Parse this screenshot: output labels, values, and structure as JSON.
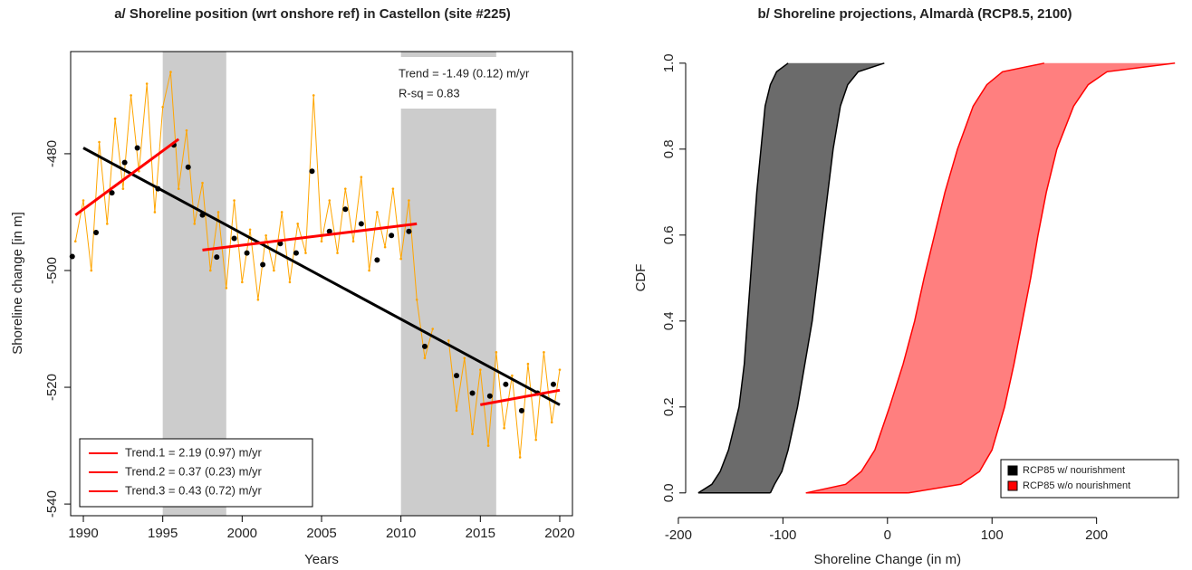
{
  "chart_data": [
    {
      "type": "line",
      "title": "a/ Shoreline position (wrt onshore ref) in Castellon (site #225)",
      "x_label": "Years",
      "y_label": "Shoreline change [in m]",
      "xlim": [
        1989.2,
        2020.8
      ],
      "ylim": [
        -542,
        -462.5
      ],
      "xticks": [
        1990,
        1995,
        2000,
        2005,
        2010,
        2015,
        2020
      ],
      "yticks": [
        -480,
        -500,
        -520,
        -540
      ],
      "shaded_periods": [
        [
          1995,
          1999
        ],
        [
          2010,
          2016
        ]
      ],
      "shade_color": "#cccccc",
      "annotations": [
        "Trend = -1.49 (0.12) m/yr",
        "R-sq = 0.83"
      ],
      "legend_position": "bottom-left",
      "series": [
        {
          "style": "line-points",
          "color": "#ffa500",
          "x": [
            1989.5,
            1990,
            1990.5,
            1991,
            1991.5,
            1992,
            1992.5,
            1993,
            1993.5,
            1994,
            1994.5,
            1995,
            1995.5,
            1996,
            1996.5,
            1997,
            1997.5,
            1998,
            1998.5,
            1999,
            1999.5,
            2000,
            2000.5,
            2001,
            2001.5,
            2002,
            2002.5,
            2003,
            2003.5,
            2004,
            2004.5,
            2005,
            2005.5,
            2006,
            2006.5,
            2007,
            2007.5,
            2008,
            2008.5,
            2009,
            2009.5,
            2010,
            2010.5,
            2011,
            2011.5,
            2012,
            2012.5,
            2013,
            2013.5,
            2014,
            2014.5,
            2015,
            2015.5,
            2016,
            2016.5,
            2017,
            2017.5,
            2018,
            2018.5,
            2019,
            2019.5,
            2020
          ],
          "values": [
            -495,
            -488,
            -500,
            -478,
            -492,
            -474,
            -486,
            -470,
            -483,
            -468,
            -490,
            -472,
            -466,
            -486,
            -476,
            -492,
            -485,
            -500,
            -490,
            -503,
            -488,
            -502,
            -493,
            -505,
            -494,
            -500,
            -490,
            -502,
            -492,
            -497,
            -470,
            -495,
            -488,
            -497,
            -486,
            -495,
            -484,
            -500,
            -490,
            -496,
            -486,
            -498,
            -488,
            -505,
            -515,
            -510,
            null,
            -512,
            -524,
            -515,
            -528,
            -517,
            -530,
            -514,
            -527,
            -518,
            -532,
            -516,
            -529,
            -514,
            -526,
            -517
          ]
        },
        {
          "style": "points",
          "color": "#000000",
          "x": [
            1989.3,
            1990.8,
            1991.8,
            1992.6,
            1993.4,
            1994.7,
            1995.7,
            1996.6,
            1997.5,
            1998.4,
            1999.5,
            2000.3,
            2001.3,
            2002.4,
            2003.4,
            2004.4,
            2005.5,
            2006.5,
            2007.5,
            2008.5,
            2009.4,
            2010.5,
            2011.5,
            2013.5,
            2014.5,
            2015.6,
            2016.6,
            2017.6,
            2018.6,
            2019.6
          ],
          "values": [
            -497.6,
            -493.5,
            -486.7,
            -481.5,
            -479,
            -486,
            -478.5,
            -482.3,
            -490.5,
            -497.7,
            -494.5,
            -497,
            -499,
            -495.4,
            -497,
            -483,
            -493.3,
            -489.5,
            -492,
            -498.2,
            -494,
            -493.3,
            -513,
            -518,
            -521,
            -521.5,
            -519.5,
            -524,
            -521,
            -519.5
          ]
        },
        {
          "style": "line",
          "color": "#000000",
          "x": [
            1990,
            2020
          ],
          "values": [
            -479,
            -523
          ]
        },
        {
          "style": "line",
          "name": "Trend.1 = 2.19 (0.97) m/yr",
          "color": "#ff0000",
          "x": [
            1989.5,
            1996
          ],
          "values": [
            -490.5,
            -477.5
          ]
        },
        {
          "style": "line",
          "name": "Trend.2 = 0.37 (0.23) m/yr",
          "color": "#ff0000",
          "x": [
            1997.5,
            2011
          ],
          "values": [
            -496.5,
            -492
          ]
        },
        {
          "style": "line",
          "name": "Trend.3 = 0.43 (0.72) m/yr",
          "color": "#ff0000",
          "x": [
            2015,
            2020
          ],
          "values": [
            -523,
            -520.5
          ]
        }
      ]
    },
    {
      "type": "area",
      "title": "b/ Shoreline projections, Almardà (RCP8.5, 2100)",
      "x_label": "Shoreline Change (in m)",
      "y_label": "CDF",
      "xlim": [
        -219,
        280
      ],
      "ylim": [
        -0.032,
        1.027
      ],
      "xticks": [
        -200,
        -100,
        0,
        100,
        200
      ],
      "yticks": [
        {
          "value": 0,
          "label": "0.0"
        },
        0.2,
        0.4,
        0.6,
        0.8,
        {
          "value": 1,
          "label": "1.0"
        }
      ],
      "legend_position": "bottom-right",
      "y": [
        0,
        0.02,
        0.05,
        0.1,
        0.2,
        0.3,
        0.4,
        0.5,
        0.6,
        0.7,
        0.8,
        0.9,
        0.95,
        0.98,
        1
      ],
      "series": [
        {
          "name": "RCP85 w/ nourishment",
          "color": "#000000",
          "fill": "#6b6b6b",
          "x_lower": [
            -181,
            -168,
            -160,
            -152,
            -142,
            -137,
            -134,
            -131,
            -128,
            -125,
            -121,
            -117,
            -112,
            -106,
            -95
          ],
          "x_upper": [
            -112,
            -108,
            -101,
            -95,
            -86,
            -79,
            -72,
            -67,
            -62,
            -57,
            -52,
            -45,
            -38,
            -28,
            -3
          ]
        },
        {
          "name": "RCP85 w/o nourishment",
          "color": "#ff0000",
          "fill": "#ff7f7f",
          "x_lower": [
            -78,
            -40,
            -25,
            -12,
            2,
            15,
            26,
            35,
            45,
            55,
            67,
            82,
            95,
            110,
            150
          ],
          "x_upper": [
            20,
            70,
            88,
            100,
            112,
            121,
            129,
            137,
            144,
            152,
            162,
            178,
            192,
            210,
            275
          ]
        }
      ]
    }
  ]
}
